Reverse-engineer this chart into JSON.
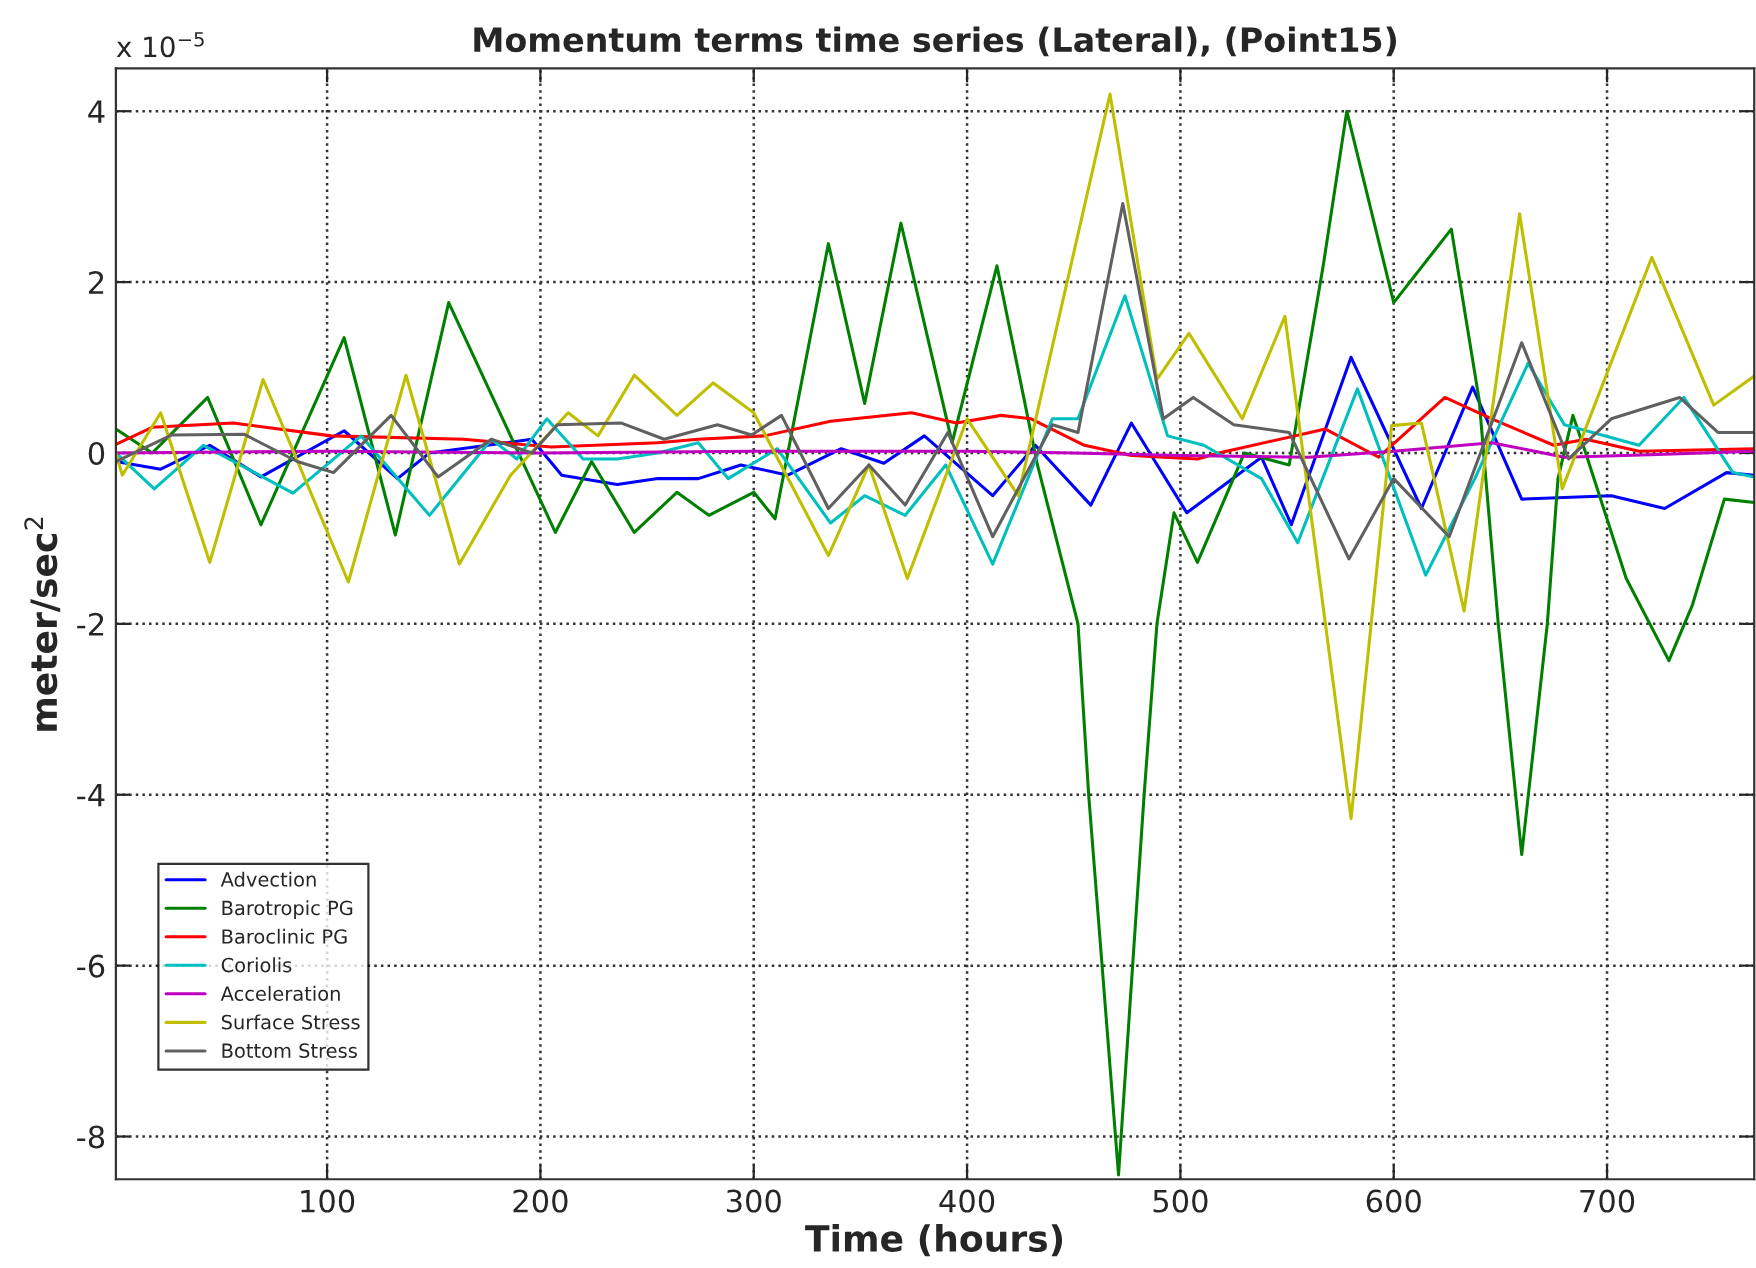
{
  "chart_data": {
    "type": "line",
    "title": "Momentum terms time series (Lateral), (Point15)",
    "xlabel": "Time (hours)",
    "ylabel": "meter/sec$^{2}$",
    "annotations": [
      "x 10$^{−5}$"
    ],
    "xlim": [
      1,
      769
    ],
    "xticks": [
      100,
      200,
      300,
      400,
      500,
      600,
      700
    ],
    "ylim": [
      -8.5,
      4.5
    ],
    "yticks": [
      -8,
      -6,
      -4,
      -2,
      0,
      2,
      4
    ],
    "grid": true,
    "legend": "bottom left",
    "line_style": "solid",
    "marker": "none",
    "series": [
      {
        "name": "Advection",
        "color": "#0000ff",
        "x": [
          1,
          22,
          45,
          69,
          108,
          133,
          148,
          196,
          210,
          236,
          255,
          274,
          294,
          316,
          341,
          361,
          380,
          412,
          432,
          458,
          477,
          503,
          538,
          552,
          580,
          613,
          637,
          660,
          702,
          727,
          756,
          769
        ],
        "values": [
          -0.1,
          -0.19,
          0.09,
          -0.28,
          0.26,
          -0.3,
          0,
          0.16,
          -0.26,
          -0.37,
          -0.3,
          -0.3,
          -0.14,
          -0.26,
          0.05,
          -0.12,
          0.2,
          -0.5,
          0.09,
          -0.61,
          0.35,
          -0.7,
          -0.05,
          -0.84,
          1.12,
          -0.65,
          0.77,
          -0.54,
          -0.5,
          -0.65,
          -0.23,
          -0.26
        ]
      },
      {
        "name": "Barotropic PG",
        "color": "#008000",
        "x": [
          1,
          18,
          44,
          69,
          108,
          132,
          157,
          207,
          224,
          244,
          264,
          279,
          300,
          310,
          335,
          352,
          369,
          393,
          414,
          433,
          452,
          457,
          471,
          483,
          489,
          497,
          508,
          530,
          551,
          567,
          578,
          600,
          627,
          640,
          649,
          660,
          672,
          677,
          684,
          690,
          709,
          729,
          740,
          755,
          769
        ],
        "values": [
          0.28,
          0,
          0.65,
          -0.84,
          1.35,
          -0.96,
          1.76,
          -0.93,
          -0.1,
          -0.93,
          -0.46,
          -0.73,
          -0.46,
          -0.77,
          2.45,
          0.58,
          2.69,
          0.12,
          2.19,
          -0.14,
          -2,
          -4,
          -8.45,
          -4,
          -2,
          -0.7,
          -1.28,
          0,
          -0.14,
          2.2,
          4.0,
          1.76,
          2.62,
          0.63,
          -2,
          -4.7,
          -2,
          -0.3,
          0.44,
          0,
          -1.47,
          -2.43,
          -1.78,
          -0.54,
          -0.58
        ]
      },
      {
        "name": "Baroclinic PG",
        "color": "#ff0000",
        "x": [
          1,
          18,
          56,
          102,
          164,
          205,
          255,
          274,
          305,
          336,
          374,
          395,
          416,
          430,
          455,
          477,
          508,
          518,
          568,
          593,
          624,
          646,
          675,
          690,
          715,
          769
        ],
        "values": [
          0.1,
          0.3,
          0.35,
          0.2,
          0.16,
          0.07,
          0.12,
          0.16,
          0.2,
          0.37,
          0.47,
          0.35,
          0.44,
          0.4,
          0.09,
          -0.03,
          -0.07,
          0,
          0.28,
          -0.05,
          0.65,
          0.4,
          0.09,
          0.16,
          0.02,
          0.05
        ]
      },
      {
        "name": "Coriolis",
        "color": "#00bfbf",
        "x": [
          1,
          19,
          42,
          84,
          116,
          148,
          177,
          189,
          203,
          220,
          236,
          255,
          274,
          288,
          311,
          336,
          352,
          371,
          390,
          412,
          440,
          452,
          474,
          494,
          511,
          538,
          555,
          583,
          615,
          638,
          663,
          680,
          715,
          736,
          759,
          769
        ],
        "values": [
          0,
          -0.42,
          0.09,
          -0.47,
          0.2,
          -0.73,
          0.16,
          -0.07,
          0.4,
          -0.07,
          -0.07,
          0,
          0.12,
          -0.3,
          0.05,
          -0.82,
          -0.5,
          -0.73,
          -0.14,
          -1.3,
          0.4,
          0.4,
          1.84,
          0.2,
          0.09,
          -0.3,
          -1.05,
          0.75,
          -1.43,
          -0.3,
          1.05,
          0.33,
          0.09,
          0.65,
          -0.23,
          -0.28
        ]
      },
      {
        "name": "Acceleration",
        "color": "#bf00bf",
        "x": [
          1,
          100,
          200,
          300,
          400,
          450,
          500,
          560,
          600,
          646,
          680,
          720,
          769
        ],
        "values": [
          0,
          0.02,
          0,
          0.02,
          0.02,
          0,
          -0.03,
          -0.05,
          0.02,
          0.12,
          -0.05,
          -0.02,
          0.02
        ]
      },
      {
        "name": "Surface Stress",
        "color": "#bfbf00",
        "x": [
          1,
          4,
          22,
          45,
          70,
          110,
          137,
          162,
          186,
          213,
          227,
          244,
          264,
          281,
          300,
          335,
          354,
          372,
          400,
          424,
          467,
          489,
          504,
          529,
          549,
          580,
          599,
          613,
          633,
          659,
          679,
          721,
          750,
          769
        ],
        "values": [
          0,
          -0.26,
          0.47,
          -1.28,
          0.86,
          -1.51,
          0.91,
          -1.3,
          -0.26,
          0.47,
          0.2,
          0.91,
          0.44,
          0.82,
          0.47,
          -1.2,
          -0.14,
          -1.47,
          0.4,
          -0.5,
          4.2,
          0.86,
          1.4,
          0.4,
          1.6,
          -4.28,
          0.32,
          0.35,
          -1.85,
          2.8,
          -0.42,
          2.29,
          0.56,
          0.9
        ]
      },
      {
        "name": "Bottom Stress",
        "color": "#606060",
        "x": [
          1,
          27,
          61,
          86,
          103,
          130,
          152,
          177,
          196,
          208,
          238,
          258,
          283,
          299,
          313,
          335,
          354,
          371,
          391,
          412,
          440,
          452,
          473,
          492,
          506,
          525,
          551,
          579,
          600,
          626,
          660,
          682,
          702,
          734,
          752,
          769
        ],
        "values": [
          -0.1,
          0.21,
          0.22,
          -0.1,
          -0.23,
          0.44,
          -0.28,
          0.16,
          0,
          0.33,
          0.35,
          0.16,
          0.33,
          0.21,
          0.44,
          -0.65,
          -0.14,
          -0.61,
          0.24,
          -0.98,
          0.33,
          0.24,
          2.92,
          0.4,
          0.65,
          0.33,
          0.24,
          -1.24,
          -0.3,
          -0.98,
          1.29,
          -0.07,
          0.4,
          0.65,
          0.24,
          0.24
        ]
      }
    ]
  }
}
